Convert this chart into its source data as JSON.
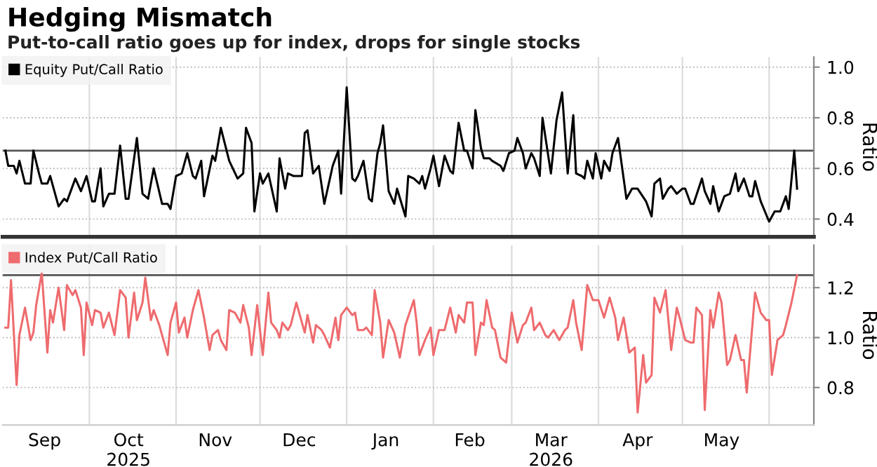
{
  "chart_data": [
    {
      "type": "line",
      "title": "Hedging Mismatch",
      "subtitle": "Put-to-call ratio goes up for index, drops for single stocks",
      "ylabel": "Ratio",
      "legend": "top left",
      "grid": true,
      "tick_labels": "y",
      "xlim": [
        "2025-08-31",
        "2026-06-17"
      ],
      "xticks": [
        {
          "value": "2025-10-01",
          "label": null
        },
        {
          "value": "2025-11-01",
          "label": null
        },
        {
          "value": "2025-12-01",
          "label": null
        },
        {
          "value": "2026-01-01",
          "label": null
        },
        {
          "value": "2026-02-01",
          "label": null
        },
        {
          "value": "2026-03-01",
          "label": null
        },
        {
          "value": "2026-04-01",
          "label": null
        },
        {
          "value": "2026-05-01",
          "label": null
        },
        {
          "value": "2026-06-01",
          "label": null
        }
      ],
      "ylim": [
        0.33,
        1.04
      ],
      "yticks": [
        0.4,
        0.6,
        0.8,
        {
          "value": 1,
          "label": "1.0"
        }
      ],
      "ref_lines": [
        {
          "axis": "y",
          "value": 0.67,
          "color": "#555555"
        }
      ],
      "series": [
        {
          "name": "Equity Put/Call Ratio",
          "color": "#000000",
          "x": [
            "2025-09-01",
            "2025-09-02",
            "2025-09-04",
            "2025-09-05",
            "2025-09-06",
            "2025-09-08",
            "2025-09-10",
            "2025-09-11",
            "2025-09-13",
            "2025-09-14",
            "2025-09-16",
            "2025-09-17",
            "2025-09-20",
            "2025-09-22",
            "2025-09-23",
            "2025-09-26",
            "2025-09-28",
            "2025-09-30",
            "2025-10-02",
            "2025-10-03",
            "2025-10-05",
            "2025-10-06",
            "2025-10-08",
            "2025-10-10",
            "2025-10-12",
            "2025-10-14",
            "2025-10-15",
            "2025-10-18",
            "2025-10-20",
            "2025-10-22",
            "2025-10-24",
            "2025-10-27",
            "2025-10-29",
            "2025-10-30",
            "2025-11-01",
            "2025-11-03",
            "2025-11-05",
            "2025-11-07",
            "2025-11-08",
            "2025-11-10",
            "2025-11-11",
            "2025-11-14",
            "2025-11-15",
            "2025-11-17",
            "2025-11-20",
            "2025-11-23",
            "2025-11-25",
            "2025-11-26",
            "2025-11-28",
            "2025-11-29",
            "2025-12-01",
            "2025-12-02",
            "2025-12-04",
            "2025-12-07",
            "2025-12-08",
            "2025-12-10",
            "2025-12-11",
            "2025-12-13",
            "2025-12-16",
            "2025-12-17",
            "2025-12-18",
            "2025-12-20",
            "2025-12-22",
            "2025-12-24",
            "2025-12-27",
            "2025-12-29",
            "2025-12-30",
            "2026-01-01",
            "2026-01-03",
            "2026-01-04",
            "2026-01-05",
            "2026-01-07",
            "2026-01-09",
            "2026-01-10",
            "2026-01-12",
            "2026-01-13",
            "2026-01-14",
            "2026-01-16",
            "2026-01-18",
            "2026-01-19",
            "2026-01-22",
            "2026-01-23",
            "2026-01-25",
            "2026-01-27",
            "2026-01-28",
            "2026-01-29",
            "2026-01-31",
            "2026-02-01",
            "2026-02-03",
            "2026-02-05",
            "2026-02-07",
            "2026-02-08",
            "2026-02-10",
            "2026-02-12",
            "2026-02-13",
            "2026-02-15",
            "2026-02-16",
            "2026-02-18",
            "2026-02-19",
            "2026-02-21",
            "2026-02-22",
            "2026-02-25",
            "2026-02-26",
            "2026-02-28",
            "2026-03-02",
            "2026-03-03",
            "2026-03-05",
            "2026-03-06",
            "2026-03-08",
            "2026-03-09",
            "2026-03-11",
            "2026-03-12",
            "2026-03-15",
            "2026-03-17",
            "2026-03-19",
            "2026-03-21",
            "2026-03-23",
            "2026-03-24",
            "2026-03-26",
            "2026-03-27",
            "2026-03-28",
            "2026-03-30",
            "2026-03-31",
            "2026-04-02",
            "2026-04-03",
            "2026-04-05",
            "2026-04-06",
            "2026-04-08",
            "2026-04-11",
            "2026-04-13",
            "2026-04-15",
            "2026-04-18",
            "2026-04-20",
            "2026-04-21",
            "2026-04-23",
            "2026-04-24",
            "2026-04-26",
            "2026-04-27",
            "2026-04-29",
            "2026-05-01",
            "2026-05-02",
            "2026-05-04",
            "2026-05-05",
            "2026-05-08",
            "2026-05-09",
            "2026-05-11",
            "2026-05-12",
            "2026-05-14",
            "2026-05-16",
            "2026-05-18",
            "2026-05-20",
            "2026-05-21",
            "2026-05-23",
            "2026-05-25",
            "2026-05-26",
            "2026-05-27",
            "2026-05-29",
            "2026-06-01",
            "2026-06-03",
            "2026-06-05",
            "2026-06-07",
            "2026-06-08",
            "2026-06-10",
            "2026-06-11"
          ],
          "values": [
            0.67,
            0.61,
            0.61,
            0.58,
            0.63,
            0.54,
            0.54,
            0.67,
            0.58,
            0.54,
            0.54,
            0.57,
            0.45,
            0.48,
            0.47,
            0.56,
            0.51,
            0.57,
            0.47,
            0.47,
            0.6,
            0.45,
            0.5,
            0.5,
            0.69,
            0.48,
            0.48,
            0.72,
            0.5,
            0.48,
            0.6,
            0.46,
            0.46,
            0.44,
            0.57,
            0.58,
            0.66,
            0.57,
            0.56,
            0.63,
            0.49,
            0.65,
            0.63,
            0.76,
            0.63,
            0.56,
            0.58,
            0.76,
            0.7,
            0.43,
            0.58,
            0.54,
            0.58,
            0.43,
            0.64,
            0.52,
            0.58,
            0.57,
            0.57,
            0.74,
            0.75,
            0.58,
            0.61,
            0.46,
            0.61,
            0.67,
            0.5,
            0.92,
            0.56,
            0.55,
            0.57,
            0.63,
            0.48,
            0.47,
            0.66,
            0.7,
            0.77,
            0.51,
            0.46,
            0.52,
            0.41,
            0.57,
            0.56,
            0.54,
            0.57,
            0.52,
            0.6,
            0.65,
            0.53,
            0.65,
            0.59,
            0.58,
            0.78,
            0.67,
            0.67,
            0.6,
            0.83,
            0.68,
            0.64,
            0.64,
            0.63,
            0.61,
            0.59,
            0.66,
            0.67,
            0.72,
            0.66,
            0.6,
            0.66,
            0.64,
            0.57,
            0.8,
            0.58,
            0.79,
            0.9,
            0.58,
            0.81,
            0.58,
            0.57,
            0.56,
            0.63,
            0.56,
            0.66,
            0.56,
            0.63,
            0.59,
            0.66,
            0.72,
            0.48,
            0.52,
            0.52,
            0.47,
            0.41,
            0.54,
            0.56,
            0.48,
            0.52,
            0.53,
            0.5,
            0.52,
            0.52,
            0.46,
            0.46,
            0.56,
            0.51,
            0.46,
            0.53,
            0.43,
            0.49,
            0.5,
            0.58,
            0.51,
            0.56,
            0.49,
            0.49,
            0.55,
            0.47,
            0.39,
            0.43,
            0.43,
            0.49,
            0.44,
            0.67,
            0.52
          ]
        }
      ]
    },
    {
      "type": "line",
      "ylabel": "Ratio",
      "legend": "top left",
      "grid": true,
      "xlim": [
        "2025-08-31",
        "2026-06-17"
      ],
      "xticks": [
        {
          "value": "2025-09-15",
          "label": "Sep"
        },
        {
          "value": "2025-10-01",
          "label": null
        },
        {
          "value": "2025-10-15",
          "label": "Oct\n2025"
        },
        {
          "value": "2025-11-01",
          "label": null
        },
        {
          "value": "2025-11-15",
          "label": "Nov"
        },
        {
          "value": "2025-12-01",
          "label": null
        },
        {
          "value": "2025-12-15",
          "label": "Dec"
        },
        {
          "value": "2026-01-01",
          "label": null
        },
        {
          "value": "2026-01-15",
          "label": "Jan"
        },
        {
          "value": "2026-02-01",
          "label": null
        },
        {
          "value": "2026-02-14",
          "label": "Feb"
        },
        {
          "value": "2026-03-01",
          "label": null
        },
        {
          "value": "2026-03-15",
          "label": "Mar\n2026"
        },
        {
          "value": "2026-04-01",
          "label": null
        },
        {
          "value": "2026-04-15",
          "label": "Apr"
        },
        {
          "value": "2026-05-01",
          "label": null
        },
        {
          "value": "2026-05-15",
          "label": "May"
        },
        {
          "value": "2026-06-01",
          "label": null
        }
      ],
      "ylim": [
        0.65,
        1.37
      ],
      "yticks": [
        0.8,
        {
          "value": 1,
          "label": "1.0"
        },
        1.2
      ],
      "ref_lines": [
        {
          "axis": "y",
          "value": 1.25,
          "color": "#555555"
        }
      ],
      "series": [
        {
          "name": "Index Put/Call Ratio",
          "color": "#ee6b6e",
          "x": [
            "2025-09-01",
            "2025-09-02",
            "2025-09-03",
            "2025-09-05",
            "2025-09-06",
            "2025-09-08",
            "2025-09-10",
            "2025-09-11",
            "2025-09-12",
            "2025-09-14",
            "2025-09-16",
            "2025-09-17",
            "2025-09-18",
            "2025-09-20",
            "2025-09-22",
            "2025-09-23",
            "2025-09-25",
            "2025-09-26",
            "2025-09-28",
            "2025-09-29",
            "2025-09-30",
            "2025-10-02",
            "2025-10-03",
            "2025-10-05",
            "2025-10-06",
            "2025-10-08",
            "2025-10-10",
            "2025-10-12",
            "2025-10-14",
            "2025-10-15",
            "2025-10-17",
            "2025-10-18",
            "2025-10-20",
            "2025-10-21",
            "2025-10-23",
            "2025-10-24",
            "2025-10-26",
            "2025-10-29",
            "2025-10-30",
            "2025-11-01",
            "2025-11-02",
            "2025-11-04",
            "2025-11-05",
            "2025-11-07",
            "2025-11-09",
            "2025-11-11",
            "2025-11-13",
            "2025-11-14",
            "2025-11-16",
            "2025-11-17",
            "2025-11-19",
            "2025-11-20",
            "2025-11-22",
            "2025-11-24",
            "2025-11-25",
            "2025-11-27",
            "2025-11-28",
            "2025-11-30",
            "2025-12-02",
            "2025-12-04",
            "2025-12-05",
            "2025-12-07",
            "2025-12-08",
            "2025-12-09",
            "2025-12-11",
            "2025-12-12",
            "2025-12-14",
            "2025-12-17",
            "2025-12-18",
            "2025-12-20",
            "2025-12-21",
            "2025-12-23",
            "2025-12-24",
            "2025-12-26",
            "2025-12-28",
            "2025-12-29",
            "2025-12-30",
            "2026-01-01",
            "2026-01-03",
            "2026-01-04",
            "2026-01-05",
            "2026-01-07",
            "2026-01-08",
            "2026-01-10",
            "2026-01-11",
            "2026-01-13",
            "2026-01-14",
            "2026-01-16",
            "2026-01-18",
            "2026-01-20",
            "2026-01-22",
            "2026-01-25",
            "2026-01-26",
            "2026-01-27",
            "2026-01-29",
            "2026-01-31",
            "2026-02-01",
            "2026-02-03",
            "2026-02-05",
            "2026-02-07",
            "2026-02-09",
            "2026-02-10",
            "2026-02-12",
            "2026-02-13",
            "2026-02-15",
            "2026-02-16",
            "2026-02-18",
            "2026-02-19",
            "2026-02-20",
            "2026-02-22",
            "2026-02-23",
            "2026-02-25",
            "2026-02-27",
            "2026-03-01",
            "2026-03-03",
            "2026-03-05",
            "2026-03-06",
            "2026-03-08",
            "2026-03-09",
            "2026-03-11",
            "2026-03-13",
            "2026-03-14",
            "2026-03-16",
            "2026-03-18",
            "2026-03-20",
            "2026-03-21",
            "2026-03-23",
            "2026-03-24",
            "2026-03-26",
            "2026-03-28",
            "2026-03-30",
            "2026-04-01",
            "2026-04-03",
            "2026-04-05",
            "2026-04-07",
            "2026-04-08",
            "2026-04-10",
            "2026-04-11",
            "2026-04-12",
            "2026-04-14",
            "2026-04-15",
            "2026-04-17",
            "2026-04-18",
            "2026-04-20",
            "2026-04-21",
            "2026-04-23",
            "2026-04-25",
            "2026-04-27",
            "2026-04-29",
            "2026-04-30",
            "2026-05-02",
            "2026-05-04",
            "2026-05-05",
            "2026-05-06",
            "2026-05-08",
            "2026-05-09",
            "2026-05-11",
            "2026-05-12",
            "2026-05-14",
            "2026-05-15",
            "2026-05-17",
            "2026-05-18",
            "2026-05-20",
            "2026-05-22",
            "2026-05-23",
            "2026-05-24",
            "2026-05-27",
            "2026-05-29",
            "2026-05-31",
            "2026-06-01",
            "2026-06-02",
            "2026-06-04",
            "2026-06-06",
            "2026-06-07",
            "2026-06-09",
            "2026-06-11"
          ],
          "values": [
            1.04,
            1.04,
            1.23,
            0.81,
            1.01,
            1.12,
            0.99,
            1.02,
            1.13,
            1.26,
            0.94,
            1.11,
            1.06,
            1.2,
            1.03,
            1.21,
            1.17,
            1.19,
            1.12,
            0.93,
            1.14,
            1.05,
            1.11,
            1.1,
            1.04,
            1.1,
            1.01,
            1.19,
            1.16,
            1.0,
            1.18,
            1.07,
            1.14,
            1.24,
            1.07,
            1.11,
            1.05,
            0.93,
            1.06,
            1.14,
            1.02,
            1.08,
            1.0,
            1.11,
            1.19,
            1.08,
            0.95,
            1.01,
            1.03,
            0.99,
            0.95,
            1.11,
            1.1,
            1.06,
            1.13,
            1.04,
            0.93,
            1.13,
            0.93,
            1.18,
            1.06,
            1.03,
            1.0,
            1.06,
            1.03,
            1.05,
            1.14,
            1.02,
            1.09,
            0.98,
            1.05,
            1.03,
            1.01,
            0.96,
            1.08,
            0.99,
            1.09,
            1.12,
            1.09,
            1.1,
            1.03,
            1.03,
            1.04,
            1.01,
            1.19,
            1.06,
            0.92,
            1.07,
            1.02,
            0.92,
            1.05,
            1.15,
            1.06,
            0.93,
            0.99,
            1.04,
            0.93,
            1.03,
            1.03,
            1.12,
            1.02,
            1.09,
            1.06,
            1.14,
            1.14,
            0.93,
            1.06,
            1.05,
            1.15,
            1.04,
            1.03,
            0.92,
            0.9,
            1.1,
            0.98,
            1.05,
            1.06,
            1.12,
            1.03,
            1.06,
            1.01,
            1.0,
            1.03,
            0.99,
            1.03,
            1.04,
            1.15,
            1.06,
            0.95,
            1.21,
            1.15,
            1.15,
            1.08,
            1.16,
            1.08,
            0.99,
            1.08,
            1.01,
            0.94,
            0.96,
            0.7,
            0.93,
            0.82,
            0.85,
            1.16,
            1.1,
            1.19,
            0.95,
            1.12,
            1.08,
            0.99,
            0.98,
            0.98,
            1.12,
            1.09,
            0.71,
            1.11,
            1.04,
            1.18,
            1.14,
            0.89,
            0.91,
            1.01,
            0.91,
            0.91,
            0.78,
            1.18,
            1.1,
            1.07,
            1.07,
            0.85,
            0.99,
            1.01,
            1.05,
            1.14,
            1.25
          ]
        }
      ]
    }
  ]
}
